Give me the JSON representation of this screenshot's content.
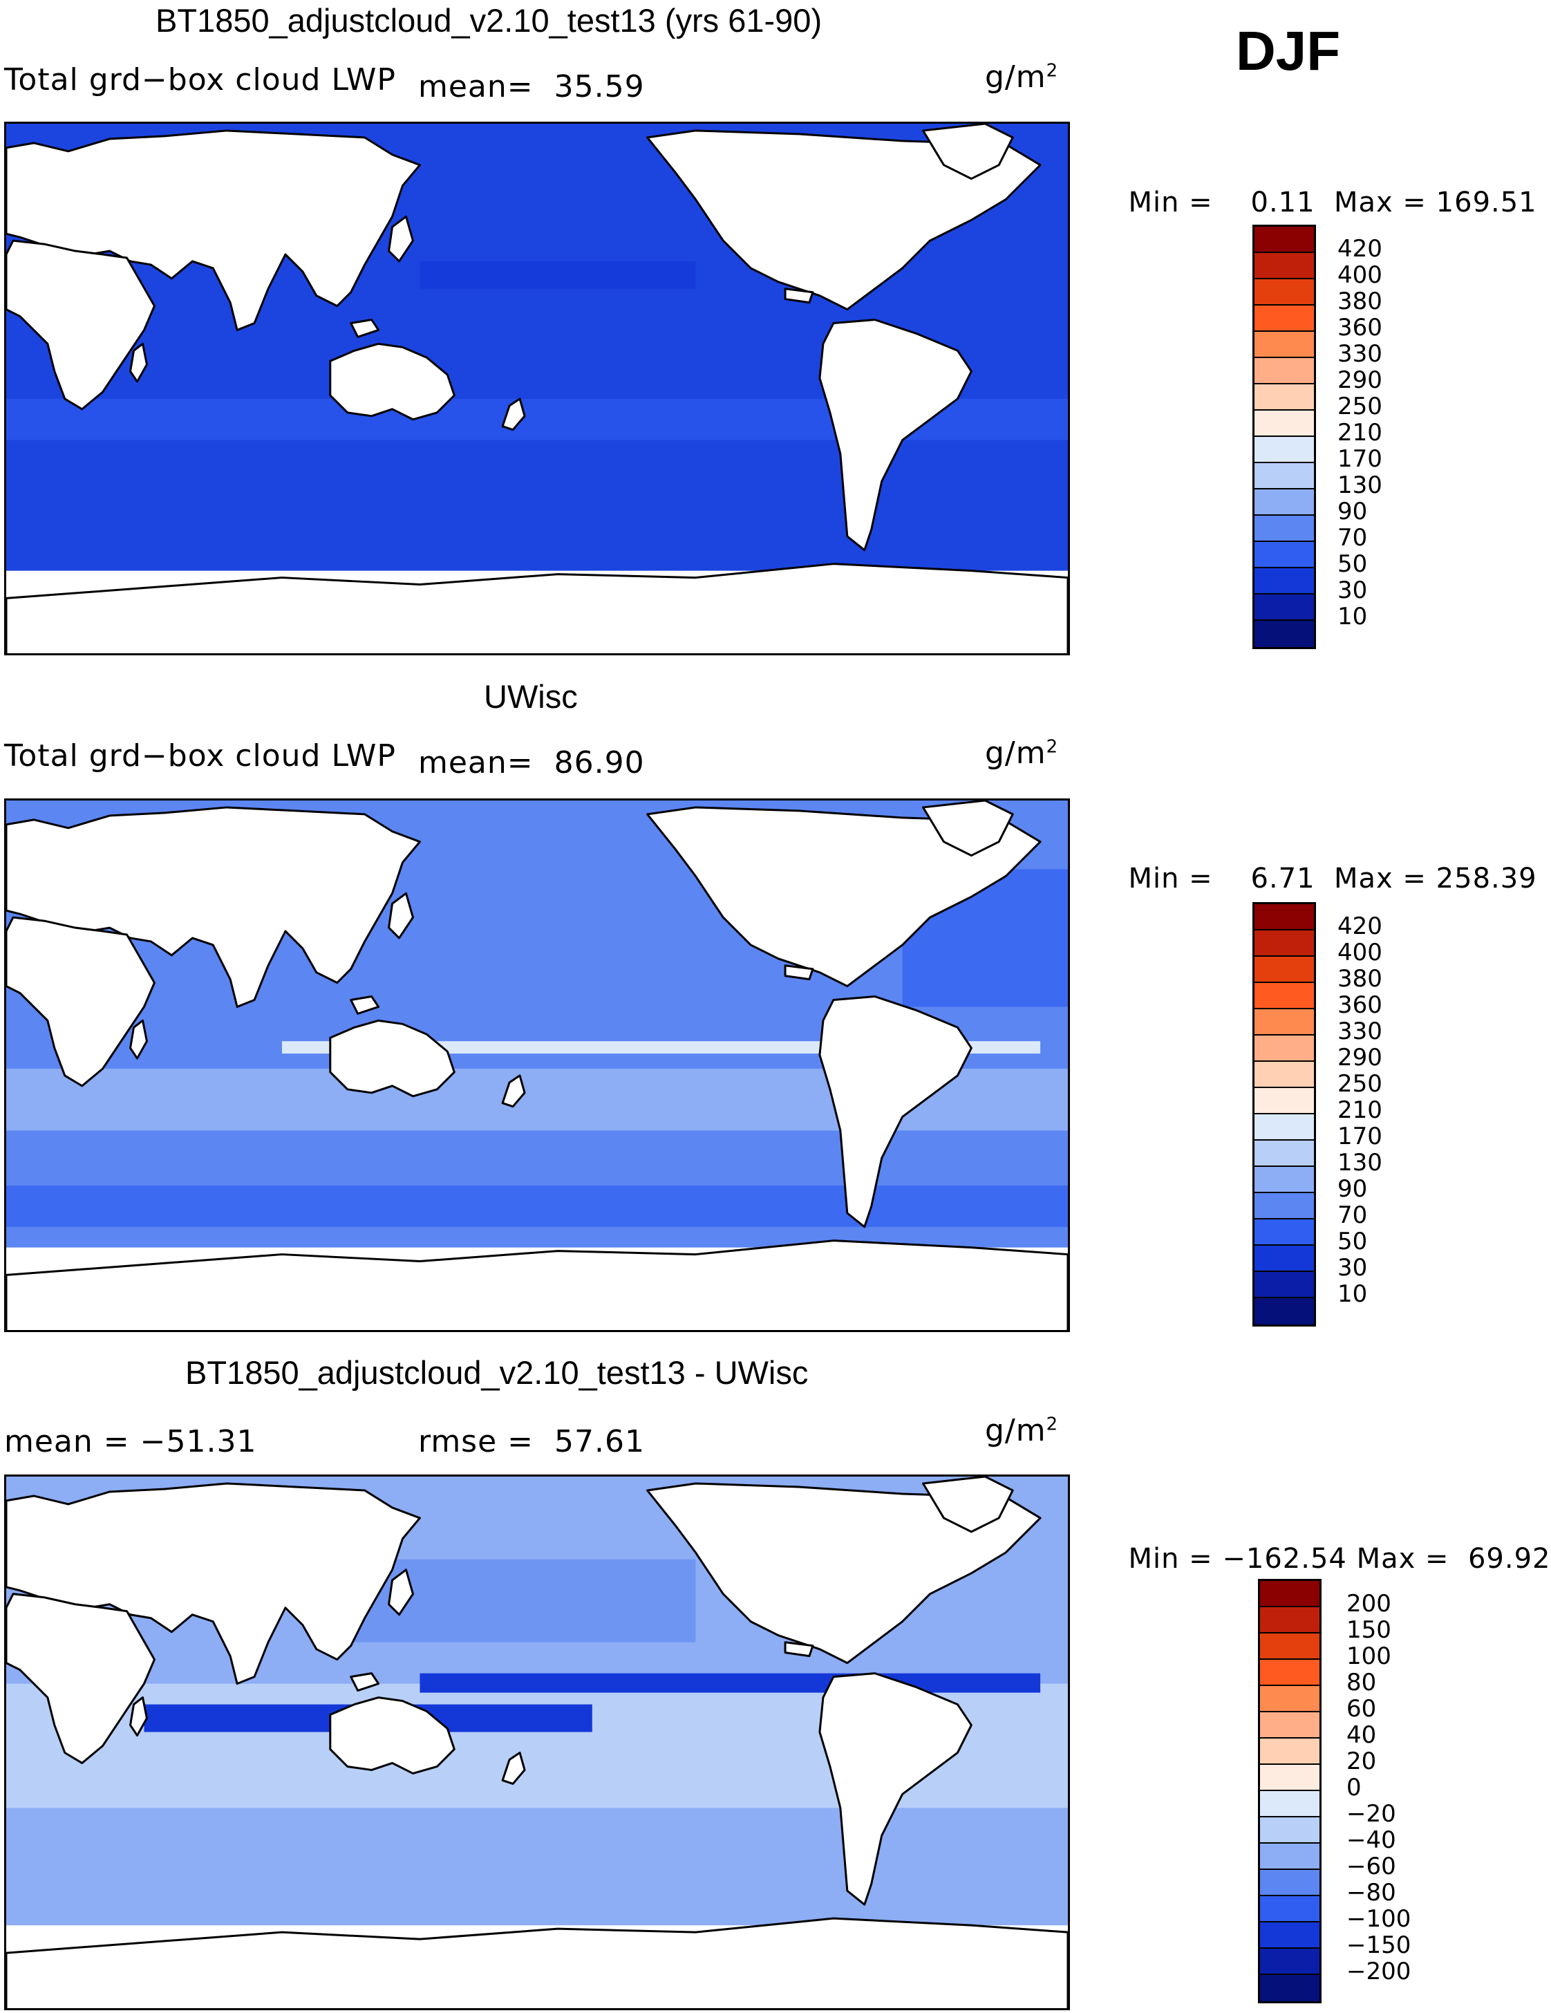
{
  "season": "DJF",
  "panels": [
    {
      "title": "BT1850_adjustcloud_v2.10_test13 (yrs 61-90)",
      "field_label": "Total grd−box cloud LWP",
      "mean_label": "mean=",
      "mean_value": "35.59",
      "units": "g/m",
      "units_exp": "2",
      "min_label": "Min =",
      "min_value": "0.11",
      "max_label": "Max =",
      "max_value": "169.51",
      "colorbar": [
        "420",
        "400",
        "380",
        "360",
        "330",
        "290",
        "250",
        "210",
        "170",
        "130",
        "90",
        "70",
        "50",
        "30",
        "10"
      ]
    },
    {
      "title": "UWisc",
      "field_label": "Total grd−box cloud LWP",
      "mean_label": "mean=",
      "mean_value": "86.90",
      "units": "g/m",
      "units_exp": "2",
      "min_label": "Min =",
      "min_value": "6.71",
      "max_label": "Max =",
      "max_value": "258.39",
      "colorbar": [
        "420",
        "400",
        "380",
        "360",
        "330",
        "290",
        "250",
        "210",
        "170",
        "130",
        "90",
        "70",
        "50",
        "30",
        "10"
      ]
    },
    {
      "title": "BT1850_adjustcloud_v2.10_test13 - UWisc",
      "mean_label": "mean =",
      "mean_value": "−51.31",
      "rmse_label": "rmse =",
      "rmse_value": "57.61",
      "units": "g/m",
      "units_exp": "2",
      "min_label": "Min =",
      "min_value": "−162.54",
      "max_label": "Max =",
      "max_value": "69.92",
      "colorbar": [
        "200",
        "150",
        "100",
        "80",
        "60",
        "40",
        "20",
        "0",
        "−20",
        "−40",
        "−60",
        "−80",
        "−100",
        "−150",
        "−200"
      ]
    }
  ],
  "colors": {
    "scale": [
      "#8b0000",
      "#c0200a",
      "#e3400e",
      "#ff5a1f",
      "#ff8a50",
      "#ffae88",
      "#ffd0b4",
      "#ffece0",
      "#dce9fb",
      "#b8cff8",
      "#8dadf5",
      "#5c86f2",
      "#2f5ef0",
      "#1438d8",
      "#0b1ea8",
      "#05107a"
    ],
    "land": "#ffffff",
    "ocean_p1": "#1c45e0",
    "ocean_p2": "#5c86f2",
    "ocean_p3": "#8dadf5"
  }
}
